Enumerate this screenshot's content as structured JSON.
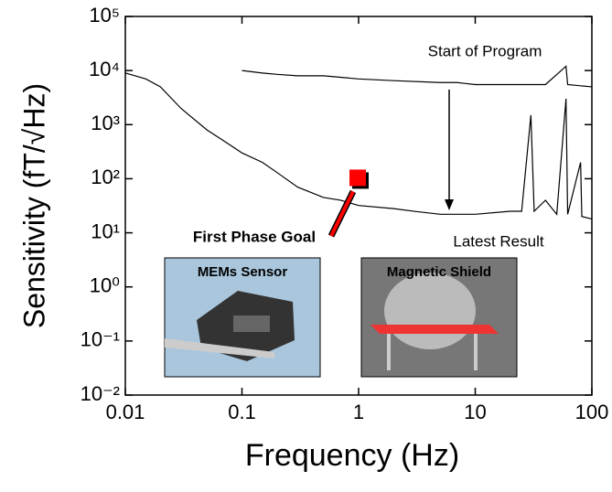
{
  "chart_data": {
    "type": "line",
    "xlabel": "Frequency (Hz)",
    "ylabel": "Sensitivity (fT/√Hz)",
    "xscale": "log",
    "yscale": "log",
    "xlim": [
      0.01,
      100
    ],
    "ylim": [
      0.01,
      100000
    ],
    "xticks": [
      0.01,
      0.1,
      1,
      10,
      100
    ],
    "yticks": [
      {
        "value": 0.01,
        "label": "10⁻²"
      },
      {
        "value": 0.1,
        "label": "10⁻¹"
      },
      {
        "value": 1,
        "label": "10⁰"
      },
      {
        "value": 10,
        "label": "10¹"
      },
      {
        "value": 100,
        "label": "10²"
      },
      {
        "value": 1000,
        "label": "10³"
      },
      {
        "value": 10000,
        "label": "10⁴"
      },
      {
        "value": 100000,
        "label": "10⁵"
      }
    ],
    "series": [
      {
        "name": "Start of Program",
        "color": "#000000",
        "x": [
          0.1,
          0.15,
          0.2,
          0.3,
          0.5,
          1,
          2,
          5,
          7,
          10,
          20,
          40,
          60,
          62,
          100
        ],
        "values": [
          10000,
          9000,
          8500,
          8000,
          8000,
          7000,
          6500,
          6000,
          6000,
          5500,
          5500,
          5500,
          12000,
          5500,
          5000
        ]
      },
      {
        "name": "Latest Result",
        "color": "#000000",
        "x": [
          0.01,
          0.015,
          0.02,
          0.03,
          0.05,
          0.07,
          0.1,
          0.15,
          0.2,
          0.3,
          0.5,
          0.7,
          1,
          2,
          3,
          5,
          7,
          10,
          20,
          25,
          30,
          32,
          40,
          50,
          60,
          62,
          80,
          82,
          100
        ],
        "values": [
          9000,
          7000,
          5000,
          2000,
          800,
          500,
          300,
          200,
          130,
          70,
          45,
          40,
          32,
          28,
          25,
          22,
          22,
          22,
          25,
          25,
          1500,
          25,
          40,
          22,
          3000,
          22,
          200,
          20,
          18
        ]
      }
    ],
    "goal": {
      "label": "First Phase Goal",
      "x": 1,
      "y": 100,
      "color": "#ff0000"
    },
    "insets": [
      "MEMs Sensor",
      "Magnetic Shield"
    ]
  }
}
